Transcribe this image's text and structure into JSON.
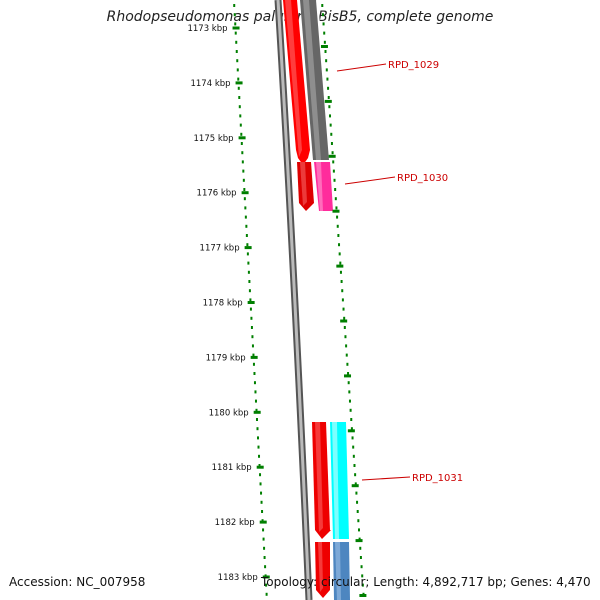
{
  "title": "Rhodopseudomonas palustris BisB5, complete genome",
  "accession_text": "Accession: NC_007958",
  "summary_text": "Topology: circular; Length: 4,892,717 bp; Genes: 4,470",
  "ruler": {
    "ticks": [
      "1173 kbp",
      "1174 kbp",
      "1175 kbp",
      "1176 kbp",
      "1177 kbp",
      "1178 kbp",
      "1179 kbp",
      "1180 kbp",
      "1181 kbp",
      "1182 kbp",
      "1183 kbp"
    ],
    "tick_color": "#007f00"
  },
  "genes": [
    {
      "label": "RPD_1029",
      "label_color": "#cc0000"
    },
    {
      "label": "RPD_1030",
      "label_color": "#cc0000"
    },
    {
      "label": "RPD_1031",
      "label_color": "#cc0000"
    }
  ],
  "colors": {
    "forward_strand": "#ff0000",
    "reverse_strand_1029": "#666666",
    "reverse_strand_1030": "#ff2c9c",
    "reverse_strand_1031_top": "#00ffff",
    "reverse_strand_1031_bottom": "#4d86c0",
    "backbone": "#888888"
  }
}
